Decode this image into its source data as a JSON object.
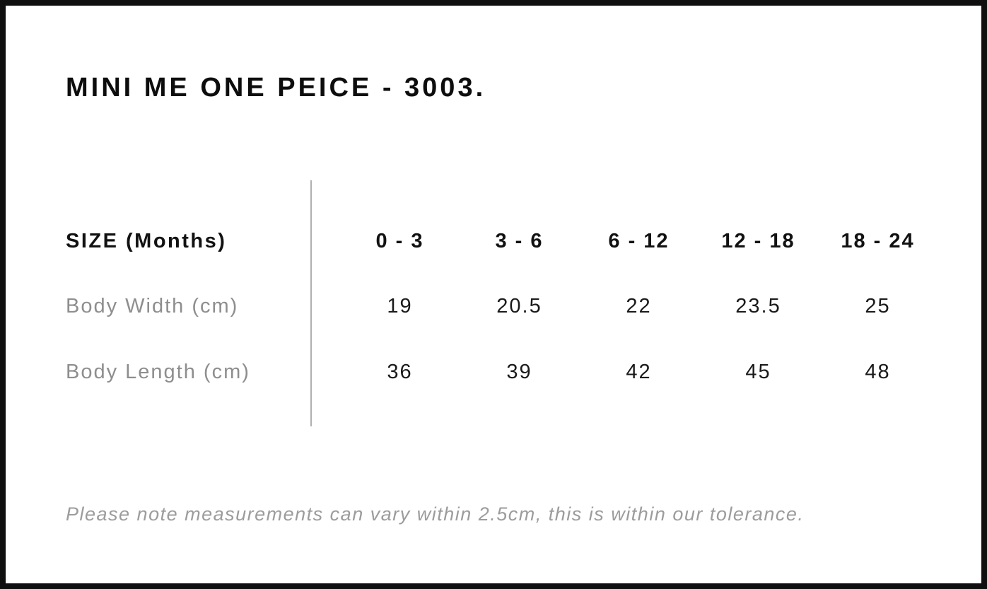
{
  "title": "MINI ME ONE PEICE - 3003.",
  "table": {
    "size_header": "SIZE (Months)",
    "columns": [
      "0 - 3",
      "3 - 6",
      "6 - 12",
      "12 - 18",
      "18 - 24"
    ],
    "rows": [
      {
        "label": "Body Width (cm)",
        "values": [
          "19",
          "20.5",
          "22",
          "23.5",
          "25"
        ]
      },
      {
        "label": "Body Length (cm)",
        "values": [
          "36",
          "39",
          "42",
          "45",
          "48"
        ]
      }
    ]
  },
  "footnote": "Please note measurements can vary within 2.5cm, this is within our tolerance.",
  "colors": {
    "frame_border": "#0f0f0f",
    "title_text": "#0d0d0d",
    "value_text": "#1a1a1a",
    "muted_label": "#8e8e8e",
    "footnote_text": "#9c9c9c",
    "divider": "#b0b0b0"
  }
}
